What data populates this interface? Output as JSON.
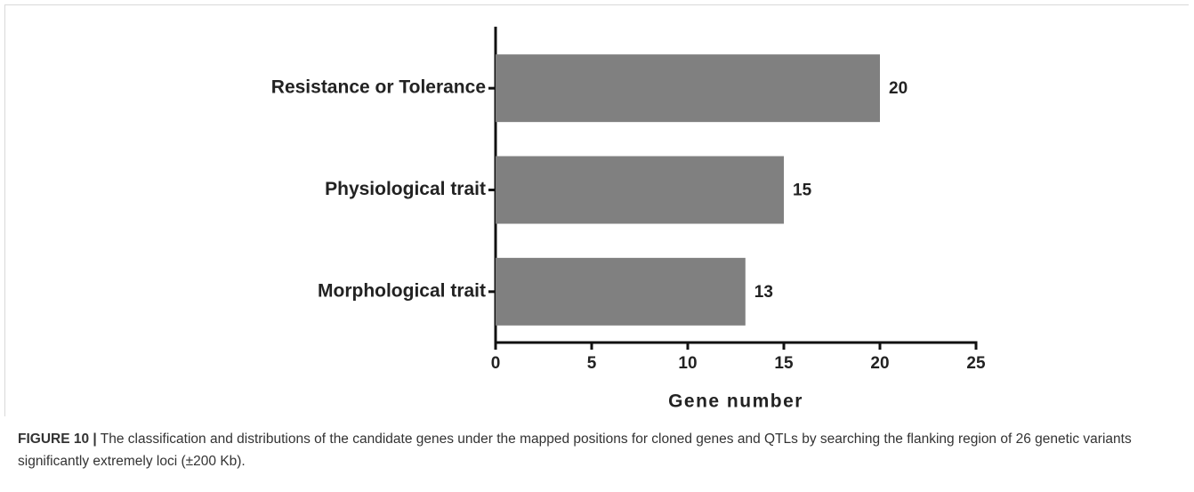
{
  "chart_data": {
    "type": "barh",
    "categories": [
      "Resistance or Tolerance",
      "Physiological trait",
      "Morphological trait"
    ],
    "values": [
      20,
      15,
      13
    ],
    "color": "#808080",
    "xlabel": "Gene number",
    "xlim": [
      0,
      25
    ],
    "xticks": [
      0,
      5,
      10,
      15,
      20,
      25
    ]
  },
  "caption": {
    "label": "FIGURE 10 |",
    "text": "The classification and distributions of the candidate genes under the mapped positions for cloned genes and QTLs by searching the flanking region of 26 genetic variants significantly extremely loci (±200 Kb)."
  }
}
